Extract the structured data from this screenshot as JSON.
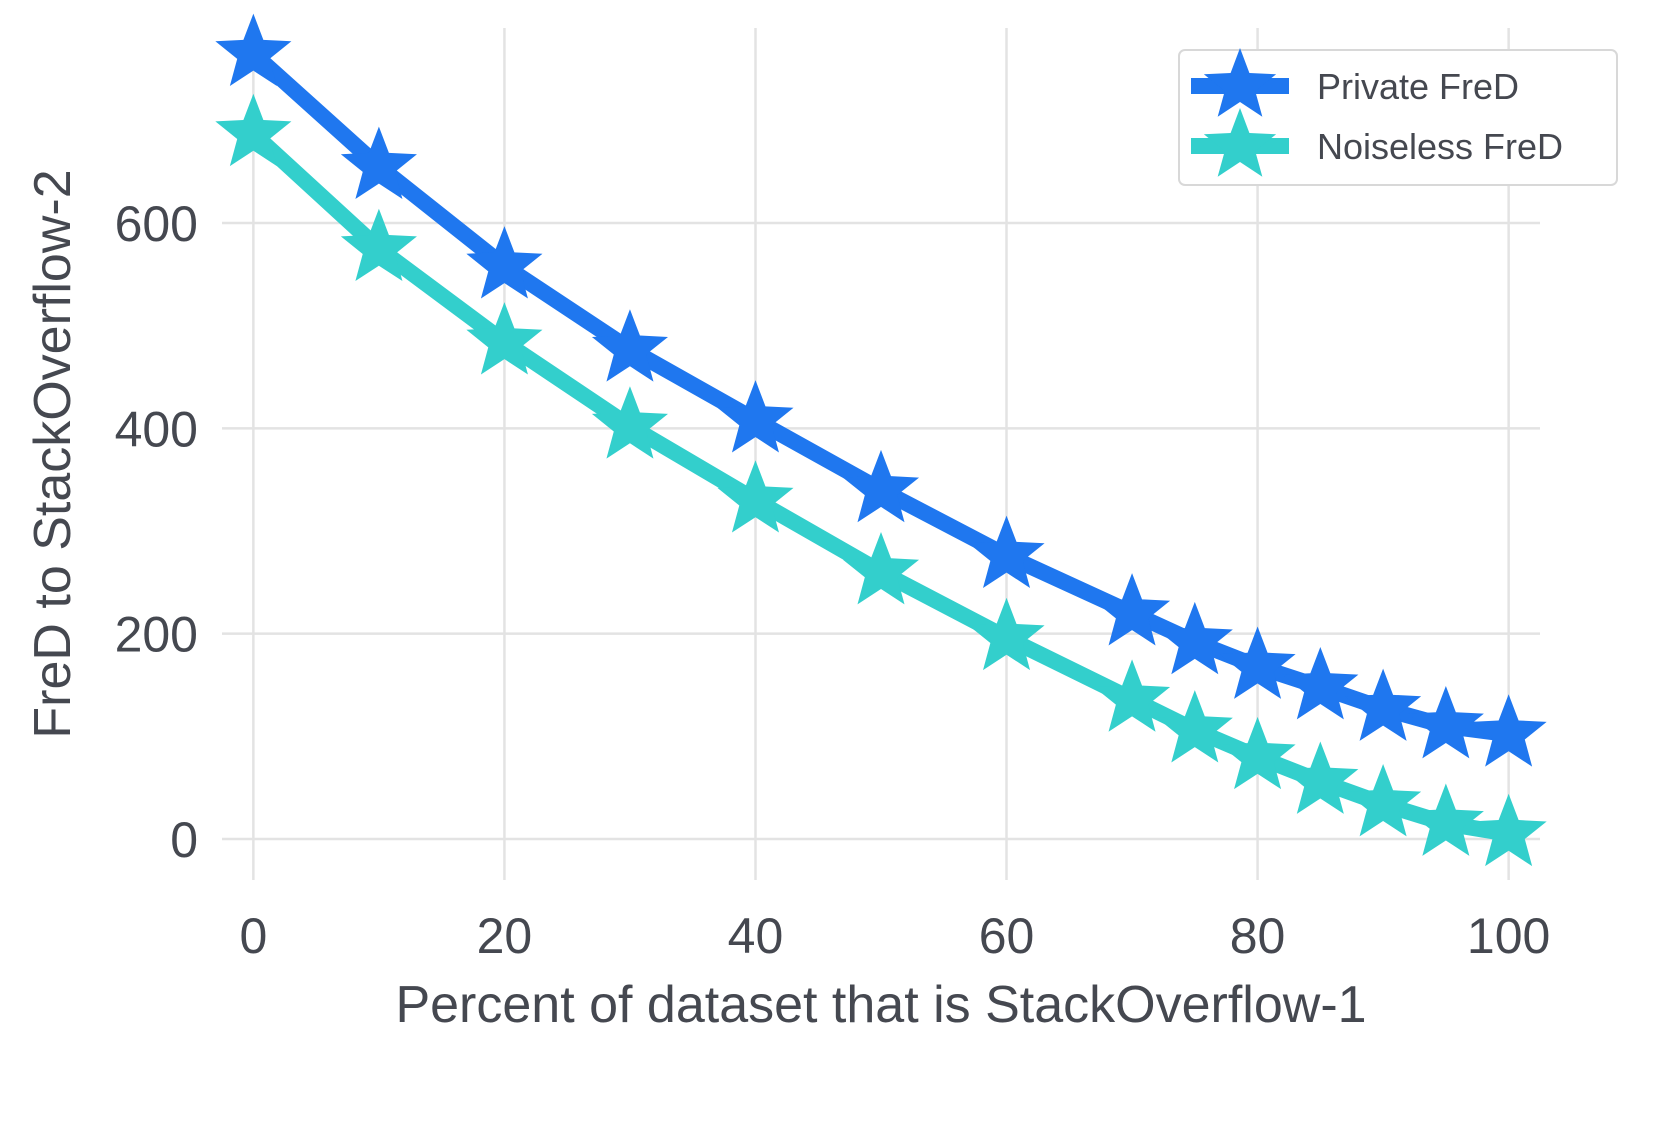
{
  "chart_data": {
    "type": "line",
    "title": "",
    "xlabel": "Percent of dataset that is StackOverflow-1",
    "ylabel": "FreD to StackOverflow-2",
    "x": [
      0,
      10,
      20,
      30,
      40,
      50,
      60,
      70,
      75,
      80,
      85,
      90,
      95,
      100
    ],
    "xlim": [
      -2.5,
      102.5
    ],
    "ylim": [
      -40,
      790
    ],
    "xticks": [
      0,
      20,
      40,
      60,
      80,
      100
    ],
    "yticks": [
      0,
      200,
      400,
      600
    ],
    "xtick_labels": [
      "0",
      "20",
      "40",
      "60",
      "80",
      "100"
    ],
    "ytick_labels": [
      "0",
      "200",
      "400",
      "600"
    ],
    "grid": true,
    "legend_position": "top-right",
    "marker": "star",
    "series": [
      {
        "name": "Private FreD",
        "color": "#1f77ef",
        "values": [
          765,
          655,
          558,
          477,
          408,
          340,
          276,
          220,
          192,
          168,
          148,
          127,
          110,
          102
        ]
      },
      {
        "name": "Noiseless FreD",
        "color": "#33cfcc",
        "values": [
          687,
          575,
          484,
          402,
          330,
          260,
          196,
          136,
          106,
          80,
          56,
          34,
          15,
          5
        ]
      }
    ]
  }
}
